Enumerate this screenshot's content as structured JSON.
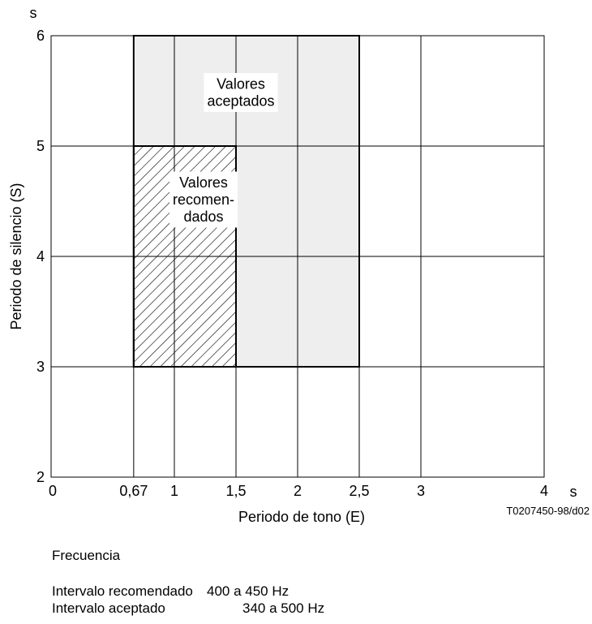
{
  "chart_data": {
    "type": "region",
    "xlabel": "Periodo de tono (E)",
    "ylabel": "Periodo de silencio (S)",
    "x_unit": "s",
    "y_unit": "s",
    "xlim": [
      0,
      4
    ],
    "ylim": [
      2,
      6
    ],
    "x_ticks": [
      "0",
      "0,67",
      "1",
      "1,5",
      "2",
      "2,5",
      "3",
      "4"
    ],
    "x_tick_values": [
      0,
      0.67,
      1,
      1.5,
      2,
      2.5,
      3,
      4
    ],
    "y_ticks": [
      "2",
      "3",
      "4",
      "5",
      "6"
    ],
    "y_tick_values": [
      2,
      3,
      4,
      5,
      6
    ],
    "grid": true,
    "regions": [
      {
        "name": "Valores aceptados",
        "label_lines": [
          "Valores",
          "aceptados"
        ],
        "x": [
          0.67,
          2.5
        ],
        "y": [
          3,
          6
        ],
        "fill": "#eeeeee",
        "pattern": "solid"
      },
      {
        "name": "Valores recomendados",
        "label_lines": [
          "Valores",
          "recomen-",
          "dados"
        ],
        "x": [
          0.67,
          1.5
        ],
        "y": [
          3,
          5
        ],
        "fill": "#ffffff",
        "pattern": "hatch"
      }
    ],
    "figure_code": "T0207450-98/d02"
  },
  "notes": {
    "title": "Frecuencia",
    "rows": [
      {
        "label": "Intervalo recomendado",
        "value": "400 a 450 Hz"
      },
      {
        "label": "Intervalo aceptado",
        "value": "340 a 500 Hz"
      }
    ]
  }
}
